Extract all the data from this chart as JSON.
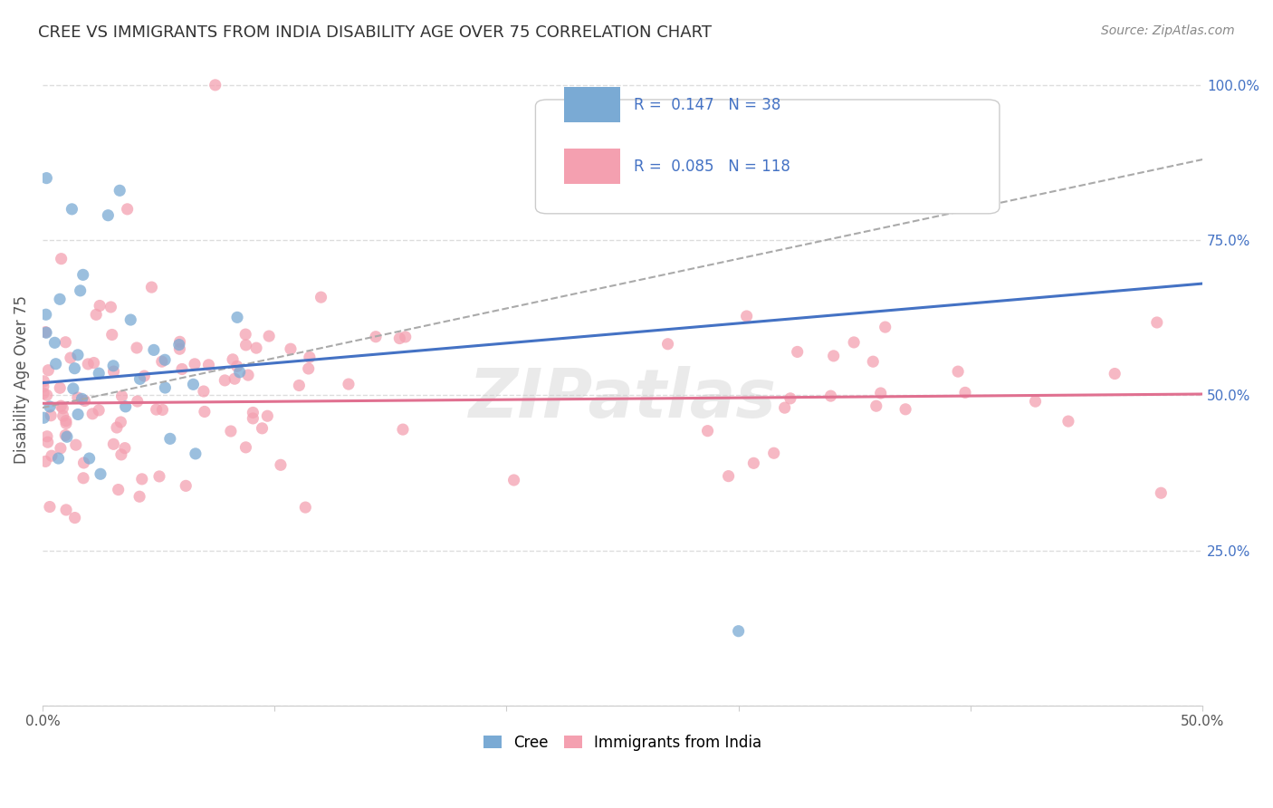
{
  "title": "CREE VS IMMIGRANTS FROM INDIA DISABILITY AGE OVER 75 CORRELATION CHART",
  "source": "Source: ZipAtlas.com",
  "ylabel": "Disability Age Over 75",
  "xlim": [
    0.0,
    0.5
  ],
  "ylim": [
    0.0,
    1.05
  ],
  "watermark": "ZIPatlas",
  "legend_r_cree": "R =  0.147",
  "legend_n_cree": "N = 38",
  "legend_r_india": "R =  0.085",
  "legend_n_india": "N = 118",
  "cree_color": "#7aaad4",
  "india_color": "#f4a0b0",
  "cree_line_color": "#4472c4",
  "india_line_color": "#e07090",
  "background_color": "#ffffff",
  "grid_color": "#dddddd",
  "blue_line_x": [
    0.0,
    0.5
  ],
  "blue_line_y": [
    0.52,
    0.68
  ],
  "pink_line_x": [
    0.0,
    0.5
  ],
  "pink_line_y": [
    0.487,
    0.502
  ],
  "gray_line_x": [
    0.0,
    0.5
  ],
  "gray_line_y": [
    0.48,
    0.88
  ]
}
